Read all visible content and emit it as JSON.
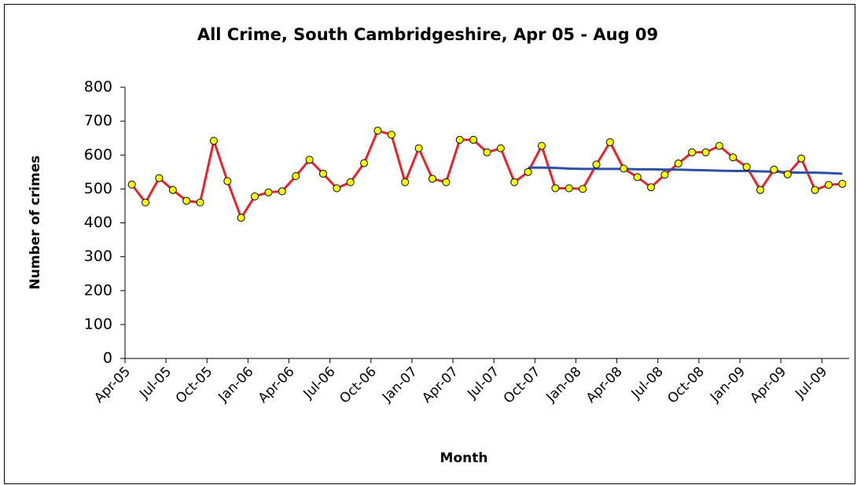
{
  "chart_data": {
    "type": "line",
    "title": "All Crime, South Cambridgeshire, Apr 05 - Aug 09",
    "xlabel": "Month",
    "ylabel": "Number of crimes",
    "categories": [
      "Apr-05",
      null,
      null,
      "Jul-05",
      null,
      null,
      "Oct-05",
      null,
      null,
      "Jan-06",
      null,
      null,
      "Apr-06",
      null,
      null,
      "Jul-06",
      null,
      null,
      "Oct-06",
      null,
      null,
      "Jan-07",
      null,
      null,
      "Apr-07",
      null,
      null,
      "Jul-07",
      null,
      null,
      "Oct-07",
      null,
      null,
      "Jan-08",
      null,
      null,
      "Apr-08",
      null,
      null,
      "Jul-08",
      null,
      null,
      "Oct-08",
      null,
      null,
      "Jan-09",
      null,
      null,
      "Apr-09",
      null,
      null,
      "Jul-09",
      null
    ],
    "series": [
      {
        "color": "#e8232a",
        "marker_color": "#ffff00",
        "values": [
          513,
          460,
          532,
          497,
          465,
          460,
          642,
          523,
          415,
          478,
          490,
          493,
          538,
          586,
          545,
          502,
          520,
          576,
          672,
          660,
          520,
          620,
          530,
          520,
          645,
          645,
          608,
          620,
          520,
          550,
          627,
          502,
          502,
          500,
          572,
          638,
          560,
          535,
          505,
          542,
          575,
          608,
          608,
          627,
          593,
          565,
          497,
          557,
          543,
          590,
          497,
          512,
          515
        ]
      },
      {
        "color": "#2e4fa3",
        "values": [
          null,
          null,
          null,
          null,
          null,
          null,
          null,
          null,
          null,
          null,
          null,
          null,
          null,
          null,
          null,
          null,
          null,
          null,
          null,
          null,
          null,
          null,
          null,
          null,
          null,
          null,
          null,
          null,
          null,
          563,
          563,
          562,
          560,
          559,
          559,
          559,
          559,
          558,
          558,
          557,
          557,
          556,
          555,
          554,
          553,
          553,
          552,
          551,
          549,
          548,
          548,
          547,
          545
        ]
      }
    ],
    "ylim": [
      0,
      800
    ],
    "yticks": [
      0,
      100,
      200,
      300,
      400,
      500,
      600,
      700,
      800
    ],
    "grid": false
  }
}
